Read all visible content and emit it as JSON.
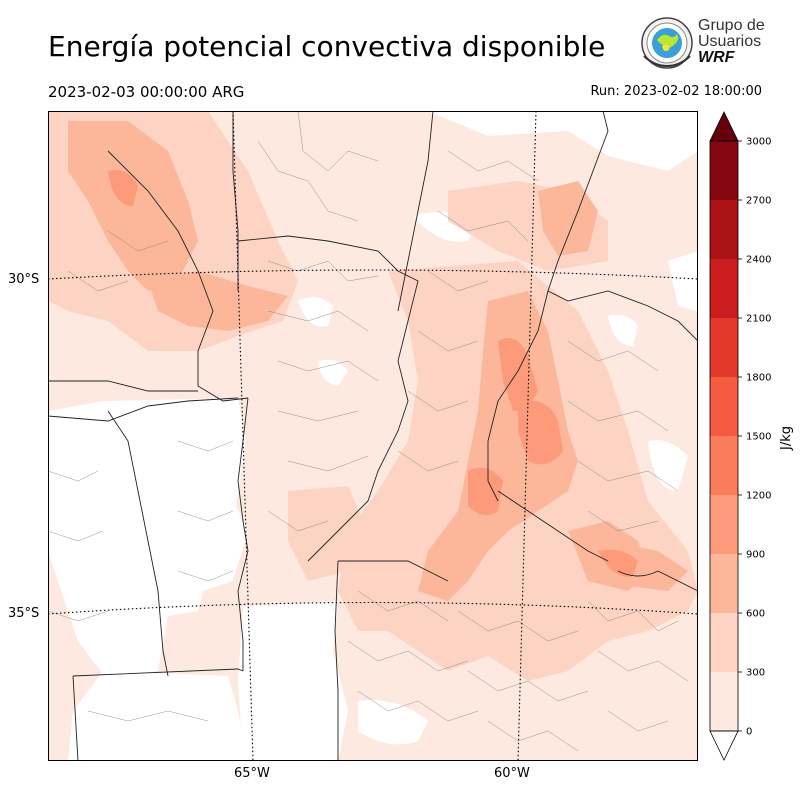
{
  "header": {
    "title": "Energía potencial convectiva disponible",
    "valid_time": "2023-02-03 00:00:00 ARG",
    "run_time": "Run: 2023-02-02 18:00:00"
  },
  "logo": {
    "line1": "Grupo de",
    "line2": "Usuarios",
    "line3": "WRF"
  },
  "axes": {
    "lat_labels": [
      "30°S",
      "35°S"
    ],
    "lon_labels": [
      "65°W",
      "60°W"
    ]
  },
  "colorbar": {
    "unit": "J/kg",
    "ticks": [
      "0",
      "300",
      "600",
      "900",
      "1200",
      "1500",
      "1800",
      "2100",
      "2400",
      "2700",
      "3000"
    ],
    "colors": [
      "#fee9e0",
      "#fdd3c3",
      "#fcb79b",
      "#fc9a7a",
      "#fb7c5c",
      "#f45b41",
      "#e2392b",
      "#cb1d1e",
      "#ad1217",
      "#870711"
    ]
  },
  "chart_data": {
    "type": "heatmap",
    "title": "Energía potencial convectiva disponible",
    "variable": "CAPE",
    "unit": "J/kg",
    "levels": [
      0,
      300,
      600,
      900,
      1200,
      1500,
      1800,
      2100,
      2400,
      2700,
      3000
    ],
    "extend": "both",
    "gridlines_lat": [
      "30°S",
      "35°S"
    ],
    "gridlines_lon": [
      "65°W",
      "60°W"
    ]
  }
}
